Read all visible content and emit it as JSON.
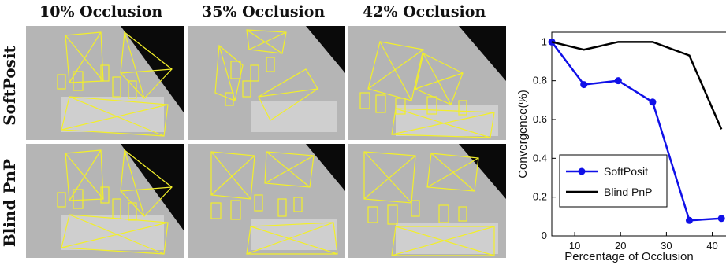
{
  "figure": {
    "columns": [
      "10% Occlusion",
      "35% Occlusion",
      "42% Occlusion"
    ],
    "rows": [
      "SoftPosit",
      "Blind PnP"
    ]
  },
  "chart_data": {
    "type": "line",
    "xlabel": "Percentage of Occlusion",
    "ylabel": "Convergence(%)",
    "xlim": [
      5,
      43
    ],
    "ylim": [
      0,
      1.05
    ],
    "xticks": [
      10,
      20,
      30,
      40
    ],
    "yticks": [
      0,
      0.2,
      0.4,
      0.6,
      0.8,
      1
    ],
    "ytick_labels": [
      "0",
      "0.2",
      "0.4",
      "0.6",
      "0.8",
      "1"
    ],
    "legend_position": "bottom-left",
    "series": [
      {
        "name": "SoftPosit",
        "color": "#1010e8",
        "marker": "circle",
        "x": [
          5,
          12,
          19.5,
          27,
          35,
          42
        ],
        "y": [
          1.0,
          0.78,
          0.8,
          0.69,
          0.08,
          0.09
        ]
      },
      {
        "name": "Blind PnP",
        "color": "#000000",
        "marker": "none",
        "x": [
          5,
          12,
          19.5,
          27,
          35,
          42
        ],
        "y": [
          1.0,
          0.96,
          1.0,
          1.0,
          0.93,
          0.55
        ]
      }
    ]
  }
}
